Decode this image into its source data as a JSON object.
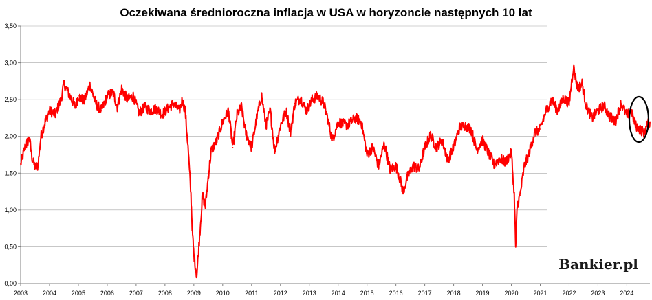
{
  "chart_data": {
    "type": "line",
    "title": "Oczekiwana średnioroczna inflacja w USA w horyzoncie następnych 10 lat",
    "xlabel": "",
    "ylabel": "",
    "ylim": [
      0,
      3.5
    ],
    "xlim": [
      2003,
      2024.8
    ],
    "y_ticks": [
      "0,00",
      "0,50",
      "1,00",
      "1,50",
      "2,00",
      "2,50",
      "3,00",
      "3,50"
    ],
    "x_ticks": [
      "2003",
      "2004",
      "2005",
      "2006",
      "2007",
      "2008",
      "2009",
      "2010",
      "2011",
      "2012",
      "2013",
      "2014",
      "2015",
      "2016",
      "2017",
      "2018",
      "2019",
      "2020",
      "2021",
      "2022",
      "2023",
      "2024"
    ],
    "grid": "horizontal",
    "series_color": "#ff0000",
    "series": [
      {
        "x": [
          2003.0,
          2003.15,
          2003.3,
          2003.4,
          2003.5,
          2003.6,
          2003.7,
          2003.85,
          2004.0,
          2004.2,
          2004.4,
          2004.5,
          2004.7,
          2004.9,
          2005.0,
          2005.2,
          2005.4,
          2005.6,
          2005.8,
          2006.0,
          2006.2,
          2006.35,
          2006.5,
          2006.7,
          2006.9,
          2007.1,
          2007.3,
          2007.5,
          2007.7,
          2007.9,
          2008.1,
          2008.3,
          2008.5,
          2008.6,
          2008.7,
          2008.8,
          2008.9,
          2008.95,
          2009.0,
          2009.1,
          2009.2,
          2009.3,
          2009.4,
          2009.5,
          2009.6,
          2009.8,
          2010.0,
          2010.2,
          2010.35,
          2010.5,
          2010.65,
          2010.8,
          2011.0,
          2011.2,
          2011.35,
          2011.5,
          2011.65,
          2011.8,
          2012.0,
          2012.2,
          2012.35,
          2012.5,
          2012.7,
          2012.9,
          2013.1,
          2013.3,
          2013.5,
          2013.6,
          2013.8,
          2014.0,
          2014.3,
          2014.6,
          2014.8,
          2015.0,
          2015.2,
          2015.4,
          2015.6,
          2015.8,
          2016.0,
          2016.1,
          2016.25,
          2016.4,
          2016.6,
          2016.8,
          2017.0,
          2017.2,
          2017.4,
          2017.6,
          2017.8,
          2018.0,
          2018.2,
          2018.4,
          2018.6,
          2018.8,
          2019.0,
          2019.2,
          2019.4,
          2019.6,
          2019.8,
          2020.0,
          2020.1,
          2020.15,
          2020.2,
          2020.3,
          2020.45,
          2020.6,
          2020.8,
          2021.0,
          2021.2,
          2021.4,
          2021.6,
          2021.8,
          2022.0,
          2022.15,
          2022.3,
          2022.45,
          2022.6,
          2022.8,
          2023.0,
          2023.2,
          2023.4,
          2023.6,
          2023.8,
          2024.0,
          2024.15,
          2024.3,
          2024.45,
          2024.6,
          2024.7,
          2024.8
        ],
        "y": [
          1.62,
          1.85,
          1.98,
          1.7,
          1.58,
          1.6,
          2.0,
          2.2,
          2.35,
          2.3,
          2.5,
          2.72,
          2.55,
          2.4,
          2.55,
          2.48,
          2.7,
          2.45,
          2.35,
          2.55,
          2.6,
          2.4,
          2.65,
          2.5,
          2.55,
          2.32,
          2.4,
          2.35,
          2.38,
          2.3,
          2.38,
          2.45,
          2.35,
          2.5,
          2.35,
          1.85,
          1.2,
          0.7,
          0.4,
          0.1,
          0.65,
          1.2,
          1.05,
          1.45,
          1.8,
          1.95,
          2.2,
          2.35,
          1.85,
          2.3,
          2.4,
          2.05,
          1.85,
          2.3,
          2.55,
          2.15,
          2.35,
          1.8,
          2.15,
          2.35,
          2.05,
          2.45,
          2.52,
          2.35,
          2.5,
          2.55,
          2.45,
          2.3,
          1.95,
          2.2,
          2.15,
          2.25,
          2.2,
          1.75,
          1.85,
          1.6,
          1.9,
          1.55,
          1.6,
          1.48,
          1.25,
          1.45,
          1.6,
          1.55,
          1.85,
          2.02,
          1.85,
          1.95,
          1.68,
          1.85,
          2.12,
          2.15,
          2.1,
          1.82,
          1.95,
          1.78,
          1.62,
          1.7,
          1.65,
          1.78,
          1.2,
          0.5,
          1.05,
          1.2,
          1.6,
          1.75,
          2.05,
          2.1,
          2.35,
          2.5,
          2.35,
          2.52,
          2.45,
          2.95,
          2.65,
          2.72,
          2.4,
          2.25,
          2.35,
          2.42,
          2.28,
          2.2,
          2.45,
          2.28,
          2.35,
          2.15,
          2.1,
          2.05,
          2.15,
          2.2
        ]
      }
    ]
  },
  "logo": {
    "text": "Bankier.pl"
  }
}
